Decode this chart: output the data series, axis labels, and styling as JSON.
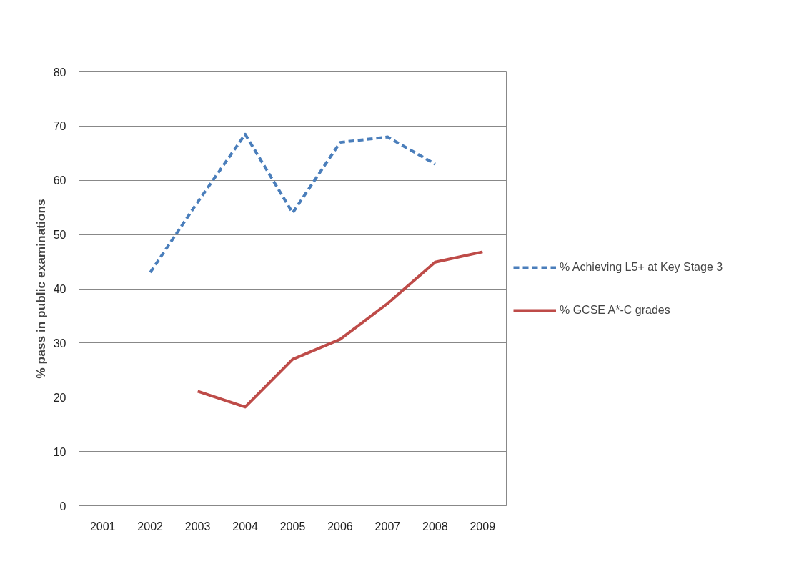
{
  "chart_data": {
    "type": "line",
    "ylabel": "% pass in public examinations",
    "categories": [
      "2001",
      "2002",
      "2003",
      "2004",
      "2005",
      "2006",
      "2007",
      "2008",
      "2009"
    ],
    "series": [
      {
        "name": "% Achieving L5+ at Key Stage 3",
        "color": "#4a7ebb",
        "line_style": "dashed",
        "values": [
          null,
          43,
          56,
          68.5,
          54,
          67,
          68,
          63,
          null
        ]
      },
      {
        "name": "% GCSE A*-C grades",
        "color": "#be4b48",
        "line_style": "solid",
        "values": [
          null,
          null,
          21.1,
          18.2,
          27,
          30.7,
          37.3,
          44.9,
          46.8
        ]
      }
    ],
    "ylim": [
      0,
      80
    ],
    "yticks": [
      0,
      10,
      20,
      30,
      40,
      50,
      60,
      70,
      80
    ],
    "grid": "y",
    "legend": "right"
  }
}
